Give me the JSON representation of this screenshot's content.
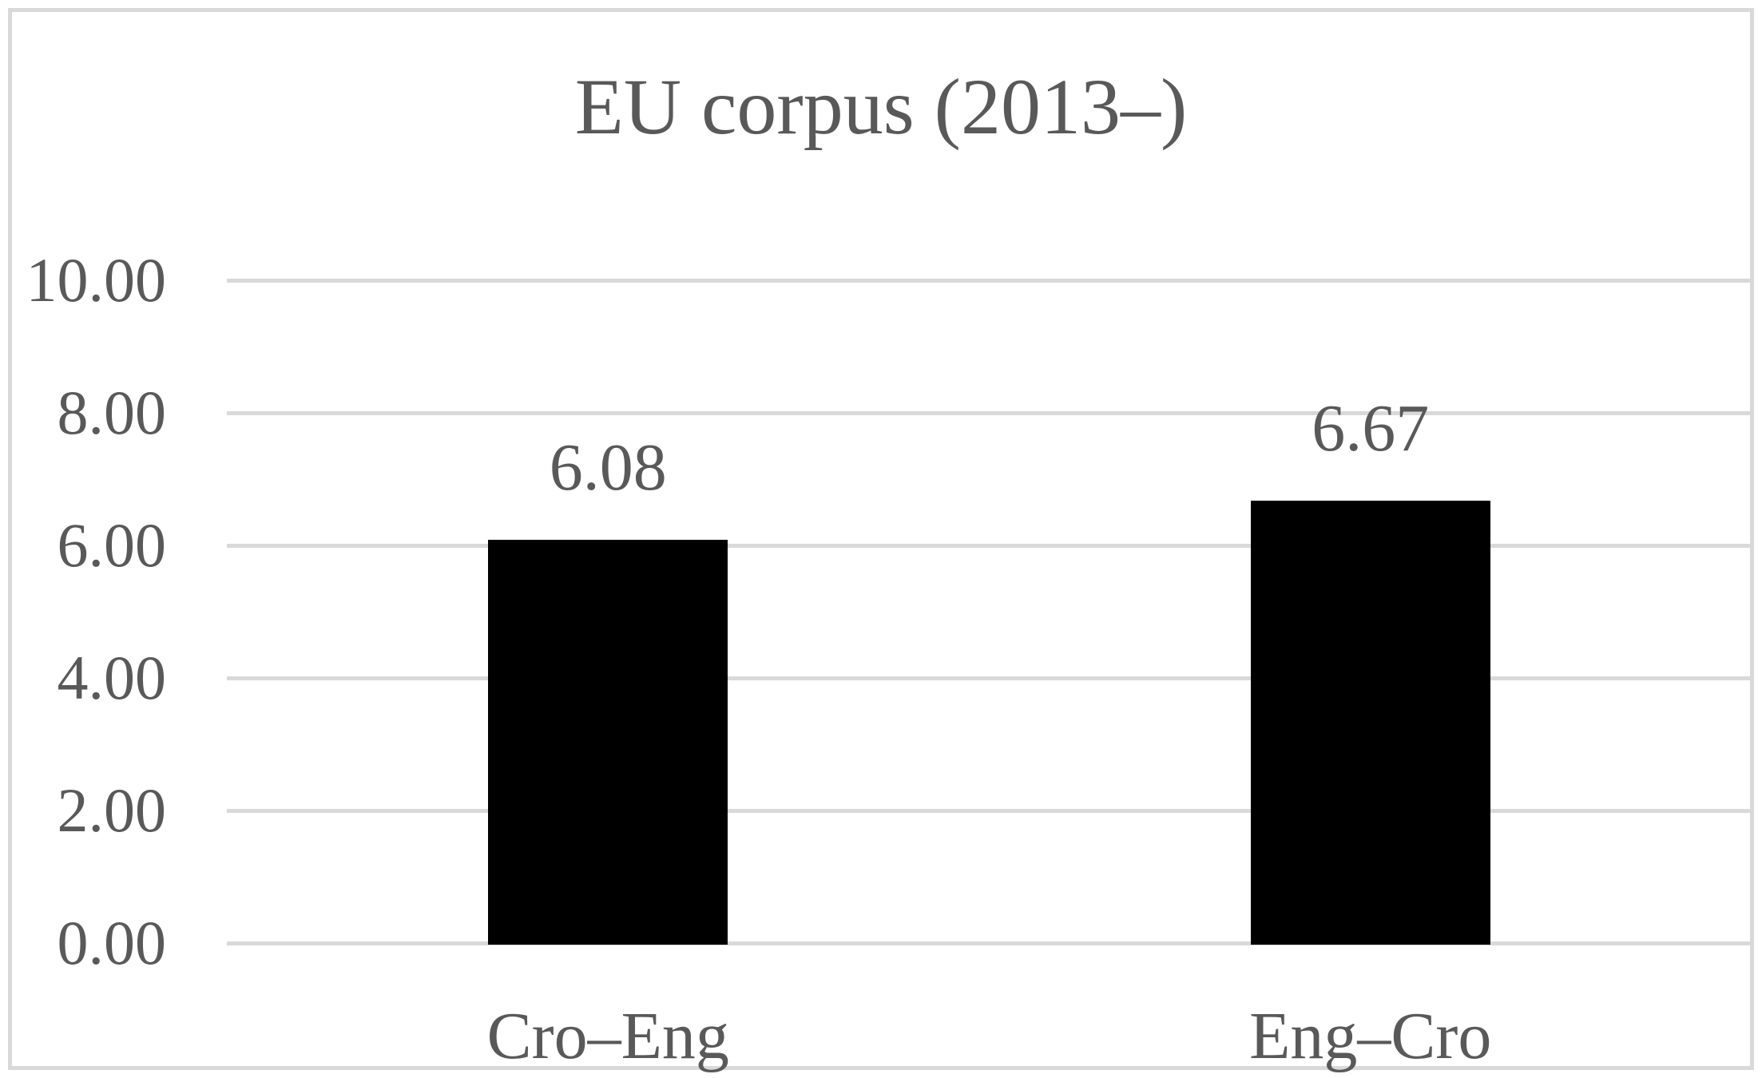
{
  "title": "EU corpus (2013–)",
  "chart_data": {
    "type": "bar",
    "title": "EU corpus (2013–)",
    "categories": [
      "Cro–Eng",
      "Eng–Cro"
    ],
    "values": [
      6.08,
      6.67
    ],
    "data_labels": [
      "6.08",
      "6.67"
    ],
    "y_ticks": [
      {
        "value": 10,
        "label": "10.00"
      },
      {
        "value": 8,
        "label": "8.00"
      },
      {
        "value": 6,
        "label": "6.00"
      },
      {
        "value": 4,
        "label": "4.00"
      },
      {
        "value": 2,
        "label": "2.00"
      },
      {
        "value": 0,
        "label": "0.00"
      }
    ],
    "ylim": [
      0,
      10
    ],
    "grid": "horizontal",
    "legend": "none",
    "colors": {
      "bar": "#000000",
      "text": "#595959",
      "gridline": "#d9d9d9",
      "border": "#d9d9d9",
      "background": "#ffffff"
    }
  }
}
